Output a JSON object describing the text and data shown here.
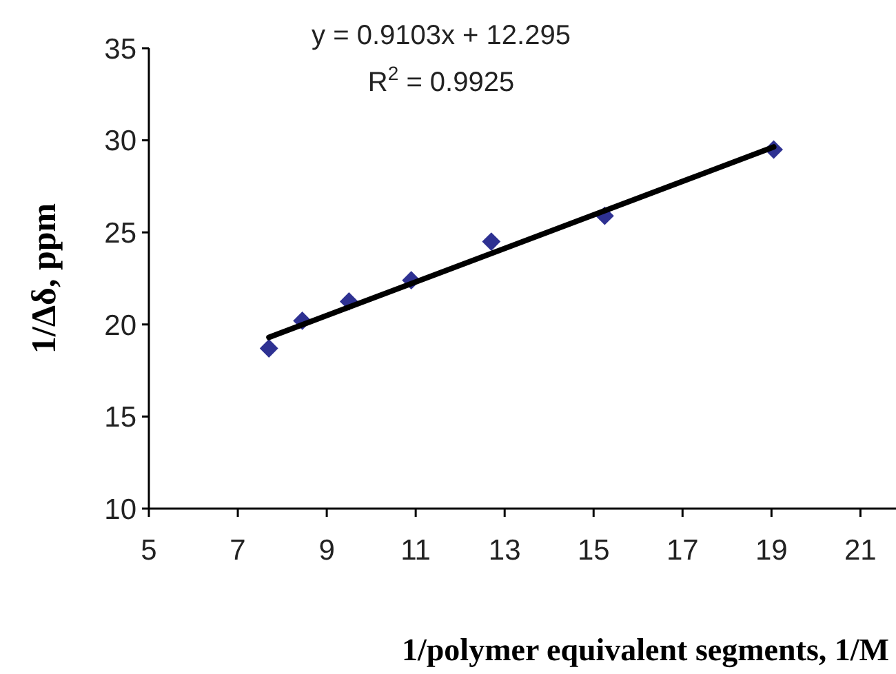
{
  "chart_data": {
    "type": "scatter",
    "xlabel": "1/polymer equivalent segments, 1/M",
    "ylabel": "1/Δδ, ppm",
    "annotations": [
      "y = 0.9103x + 12.295",
      "R$^{2}$ = 0.9925"
    ],
    "xlim": [
      5,
      21.8
    ],
    "xticks": [
      5,
      7,
      9,
      11,
      13,
      15,
      17,
      19,
      21
    ],
    "ylim": [
      10,
      35
    ],
    "yticks": [
      10,
      15,
      20,
      25,
      30,
      35
    ],
    "grid": false,
    "marker": "diamond",
    "series": [
      {
        "color": "#2e3192",
        "x": [
          7.7,
          8.45,
          9.5,
          10.9,
          12.7,
          15.25,
          19.05
        ],
        "values": [
          18.7,
          20.2,
          21.25,
          22.4,
          24.5,
          25.9,
          29.5
        ]
      },
      {
        "type": "line",
        "color": "#000000",
        "x": [
          7.7,
          19.05
        ],
        "values": [
          19.3,
          29.64
        ],
        "marker": "none",
        "line_style": "solid"
      }
    ]
  }
}
